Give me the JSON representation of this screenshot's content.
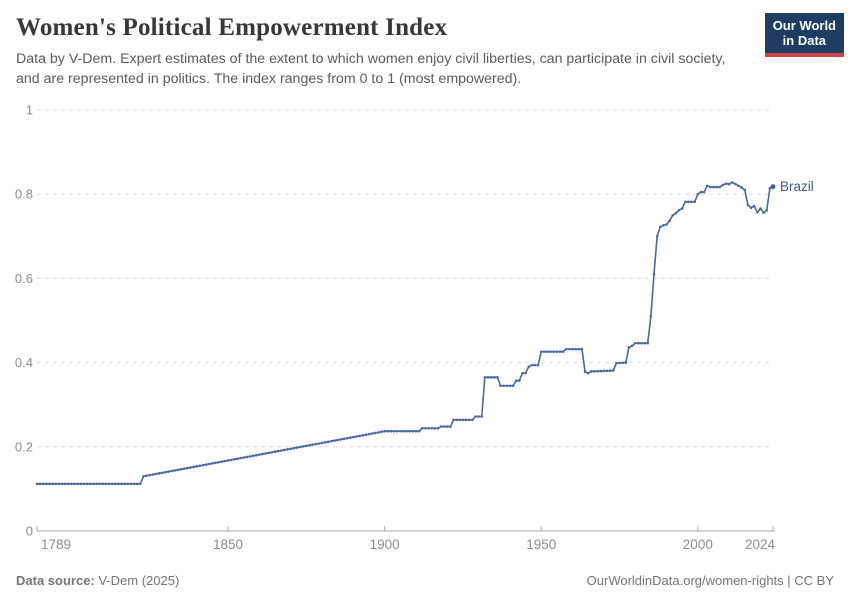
{
  "header": {
    "title": "Women's Political Empowerment Index",
    "subtitle": "Data by V-Dem. Expert estimates of the extent to which women enjoy civil liberties, can participate in civil society, and are represented in politics. The index ranges from 0 to 1 (most empowered).",
    "logo": {
      "line1": "Our World",
      "line2": "in Data",
      "bg_color": "#1d3d63",
      "accent_color": "#cf4447"
    }
  },
  "chart_data": {
    "type": "line",
    "title": "Women's Political Empowerment Index",
    "entity": "Brazil",
    "xlabel": "",
    "ylabel": "",
    "xlim": [
      1789,
      2024
    ],
    "ylim": [
      0,
      1
    ],
    "x_ticks": [
      "1789",
      "1850",
      "1900",
      "1950",
      "2000",
      "2024"
    ],
    "y_ticks": [
      "0",
      "0.2",
      "0.4",
      "0.6",
      "0.8",
      "1"
    ],
    "grid": "horizontal dashed gridlines at each y tick",
    "legend_position": "label at end of line",
    "line_color": "#4a69a2",
    "label_color": "#3d5a8f",
    "axis_color": "#a9a9a9",
    "grid_color": "#dadada",
    "tick_label_color": "#8c8c8c",
    "interpolation": "linear between anchor years; one small marker per year",
    "series": [
      {
        "name": "Brazil",
        "anchors": [
          [
            1789,
            0.112
          ],
          [
            1822,
            0.112
          ],
          [
            1823,
            0.13
          ],
          [
            1900,
            0.237
          ],
          [
            1911,
            0.237
          ],
          [
            1912,
            0.244
          ],
          [
            1917,
            0.244
          ],
          [
            1918,
            0.248
          ],
          [
            1921,
            0.248
          ],
          [
            1922,
            0.264
          ],
          [
            1928,
            0.264
          ],
          [
            1929,
            0.272
          ],
          [
            1931,
            0.272
          ],
          [
            1932,
            0.365
          ],
          [
            1936,
            0.365
          ],
          [
            1937,
            0.345
          ],
          [
            1941,
            0.345
          ],
          [
            1942,
            0.357
          ],
          [
            1943,
            0.357
          ],
          [
            1944,
            0.375
          ],
          [
            1945,
            0.375
          ],
          [
            1946,
            0.39
          ],
          [
            1947,
            0.394
          ],
          [
            1949,
            0.394
          ],
          [
            1950,
            0.426
          ],
          [
            1957,
            0.426
          ],
          [
            1958,
            0.432
          ],
          [
            1963,
            0.432
          ],
          [
            1964,
            0.378
          ],
          [
            1965,
            0.375
          ],
          [
            1966,
            0.379
          ],
          [
            1973,
            0.381
          ],
          [
            1974,
            0.399
          ],
          [
            1977,
            0.4
          ],
          [
            1978,
            0.436
          ],
          [
            1979,
            0.44
          ],
          [
            1980,
            0.446
          ],
          [
            1984,
            0.446
          ],
          [
            1985,
            0.51
          ],
          [
            1986,
            0.61
          ],
          [
            1987,
            0.7
          ],
          [
            1988,
            0.722
          ],
          [
            1989,
            0.726
          ],
          [
            1990,
            0.728
          ],
          [
            1991,
            0.737
          ],
          [
            1992,
            0.75
          ],
          [
            1993,
            0.755
          ],
          [
            1994,
            0.762
          ],
          [
            1995,
            0.766
          ],
          [
            1996,
            0.782
          ],
          [
            1999,
            0.782
          ],
          [
            2000,
            0.8
          ],
          [
            2001,
            0.805
          ],
          [
            2002,
            0.805
          ],
          [
            2003,
            0.82
          ],
          [
            2004,
            0.817
          ],
          [
            2007,
            0.817
          ],
          [
            2008,
            0.822
          ],
          [
            2009,
            0.825
          ],
          [
            2010,
            0.824
          ],
          [
            2011,
            0.828
          ],
          [
            2012,
            0.824
          ],
          [
            2013,
            0.82
          ],
          [
            2014,
            0.816
          ],
          [
            2015,
            0.81
          ],
          [
            2016,
            0.774
          ],
          [
            2017,
            0.768
          ],
          [
            2018,
            0.772
          ],
          [
            2019,
            0.757
          ],
          [
            2020,
            0.766
          ],
          [
            2021,
            0.756
          ],
          [
            2022,
            0.762
          ],
          [
            2023,
            0.814
          ],
          [
            2024,
            0.818
          ]
        ]
      }
    ]
  },
  "footer": {
    "source_label": "Data source:",
    "source_value": "V-Dem (2025)",
    "credit": "OurWorldinData.org/women-rights | CC BY"
  }
}
